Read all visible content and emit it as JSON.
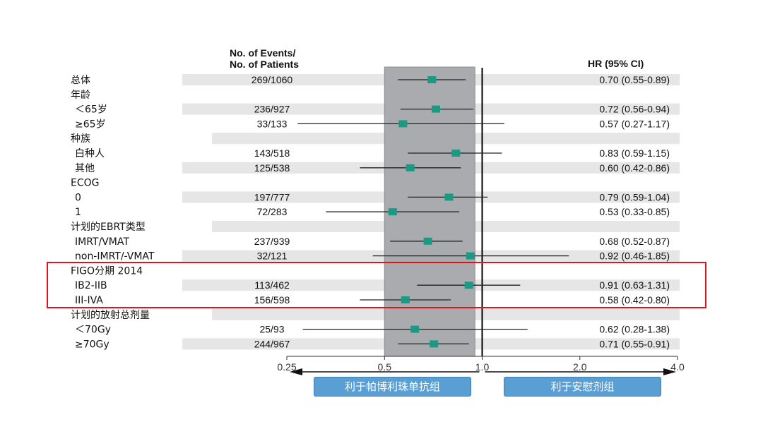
{
  "header": {
    "events_line1": "No. of  Events/",
    "events_line2": "No. of Patients",
    "hr_label": "HR (95% CI)"
  },
  "chart_data": {
    "type": "forest",
    "title": "",
    "xscale": "log2",
    "xlim": [
      0.25,
      4.0
    ],
    "xticks": [
      "0.25",
      "0.5",
      "1.0",
      "2.0",
      "4.0"
    ],
    "reference_line": 1.0,
    "shaded_band": [
      0.5,
      0.95
    ],
    "favors_left": "利于帕博利珠单抗组",
    "favors_right": "利于安慰剂组",
    "rows": [
      {
        "label": "总体",
        "indent": 0,
        "events": "269/1060",
        "hr_text": "0.70 (0.55-0.89)",
        "hr": 0.7,
        "lo": 0.55,
        "hi": 0.89,
        "band": true,
        "band_events": true
      },
      {
        "label": "年龄",
        "indent": 0,
        "band": false
      },
      {
        "label": "＜65岁",
        "indent": 1,
        "events": "236/927",
        "hr_text": "0.72 (0.56-0.94)",
        "hr": 0.72,
        "lo": 0.56,
        "hi": 0.94,
        "band": true,
        "band_events": true
      },
      {
        "label": "≥65岁",
        "indent": 1,
        "events": "33/133",
        "hr_text": "0.57 (0.27-1.17)",
        "hr": 0.57,
        "lo": 0.27,
        "hi": 1.17,
        "band": false
      },
      {
        "label": "种族",
        "indent": 0,
        "band": true,
        "band_events": false
      },
      {
        "label": "白种人",
        "indent": 1,
        "events": "143/518",
        "hr_text": "0.83 (0.59-1.15)",
        "hr": 0.83,
        "lo": 0.59,
        "hi": 1.15,
        "band": false
      },
      {
        "label": "其他",
        "indent": 1,
        "events": "125/538",
        "hr_text": "0.60 (0.42-0.86)",
        "hr": 0.6,
        "lo": 0.42,
        "hi": 0.86,
        "band": true,
        "band_events": true
      },
      {
        "label": "ECOG",
        "indent": 0,
        "band": false
      },
      {
        "label": "0",
        "indent": 1,
        "events": "197/777",
        "hr_text": "0.79 (0.59-1.04)",
        "hr": 0.79,
        "lo": 0.59,
        "hi": 1.04,
        "band": true,
        "band_events": true
      },
      {
        "label": "1",
        "indent": 1,
        "events": "72/283",
        "hr_text": "0.53 (0.33-0.85)",
        "hr": 0.53,
        "lo": 0.33,
        "hi": 0.85,
        "band": false
      },
      {
        "label": "计划的EBRT类型",
        "indent": 0,
        "band": true,
        "band_events": false
      },
      {
        "label": "IMRT/VMAT",
        "indent": 1,
        "events": "237/939",
        "hr_text": "0.68 (0.52-0.87)",
        "hr": 0.68,
        "lo": 0.52,
        "hi": 0.87,
        "band": false
      },
      {
        "label": "non-IMRT/-VMAT",
        "indent": 1,
        "events": "32/121",
        "hr_text": "0.92 (0.46-1.85)",
        "hr": 0.92,
        "lo": 0.46,
        "hi": 1.85,
        "band": true,
        "band_events": true
      },
      {
        "label": "FIGO分期 2014",
        "indent": 0,
        "band": false
      },
      {
        "label": "IB2-IIB",
        "indent": 1,
        "events": "113/462",
        "hr_text": "0.91 (0.63-1.31)",
        "hr": 0.91,
        "lo": 0.63,
        "hi": 1.31,
        "band": true,
        "band_events": true
      },
      {
        "label": "III-IVA",
        "indent": 1,
        "events": "156/598",
        "hr_text": "0.58 (0.42-0.80)",
        "hr": 0.58,
        "lo": 0.42,
        "hi": 0.8,
        "band": false
      },
      {
        "label": "计划的放射总剂量",
        "indent": 0,
        "band": true,
        "band_events": false
      },
      {
        "label": "＜70Gy",
        "indent": 1,
        "events": "25/93",
        "hr_text": "0.62 (0.28-1.38)",
        "hr": 0.62,
        "lo": 0.28,
        "hi": 1.38,
        "band": false
      },
      {
        "label": "≥70Gy",
        "indent": 1,
        "events": "244/967",
        "hr_text": "0.71 (0.55-0.91)",
        "hr": 0.71,
        "lo": 0.55,
        "hi": 0.91,
        "band": true,
        "band_events": true
      }
    ],
    "highlighted_rows": [
      "FIGO分期 2014",
      "IB2-IIB",
      "III-IVA"
    ],
    "colors": {
      "marker": "#1a9a84",
      "shaded_band": "#a9abae",
      "row_band": "#e6e6e6",
      "highlight_box": "#e0141e",
      "favors_box": "#5a9fd4"
    }
  }
}
